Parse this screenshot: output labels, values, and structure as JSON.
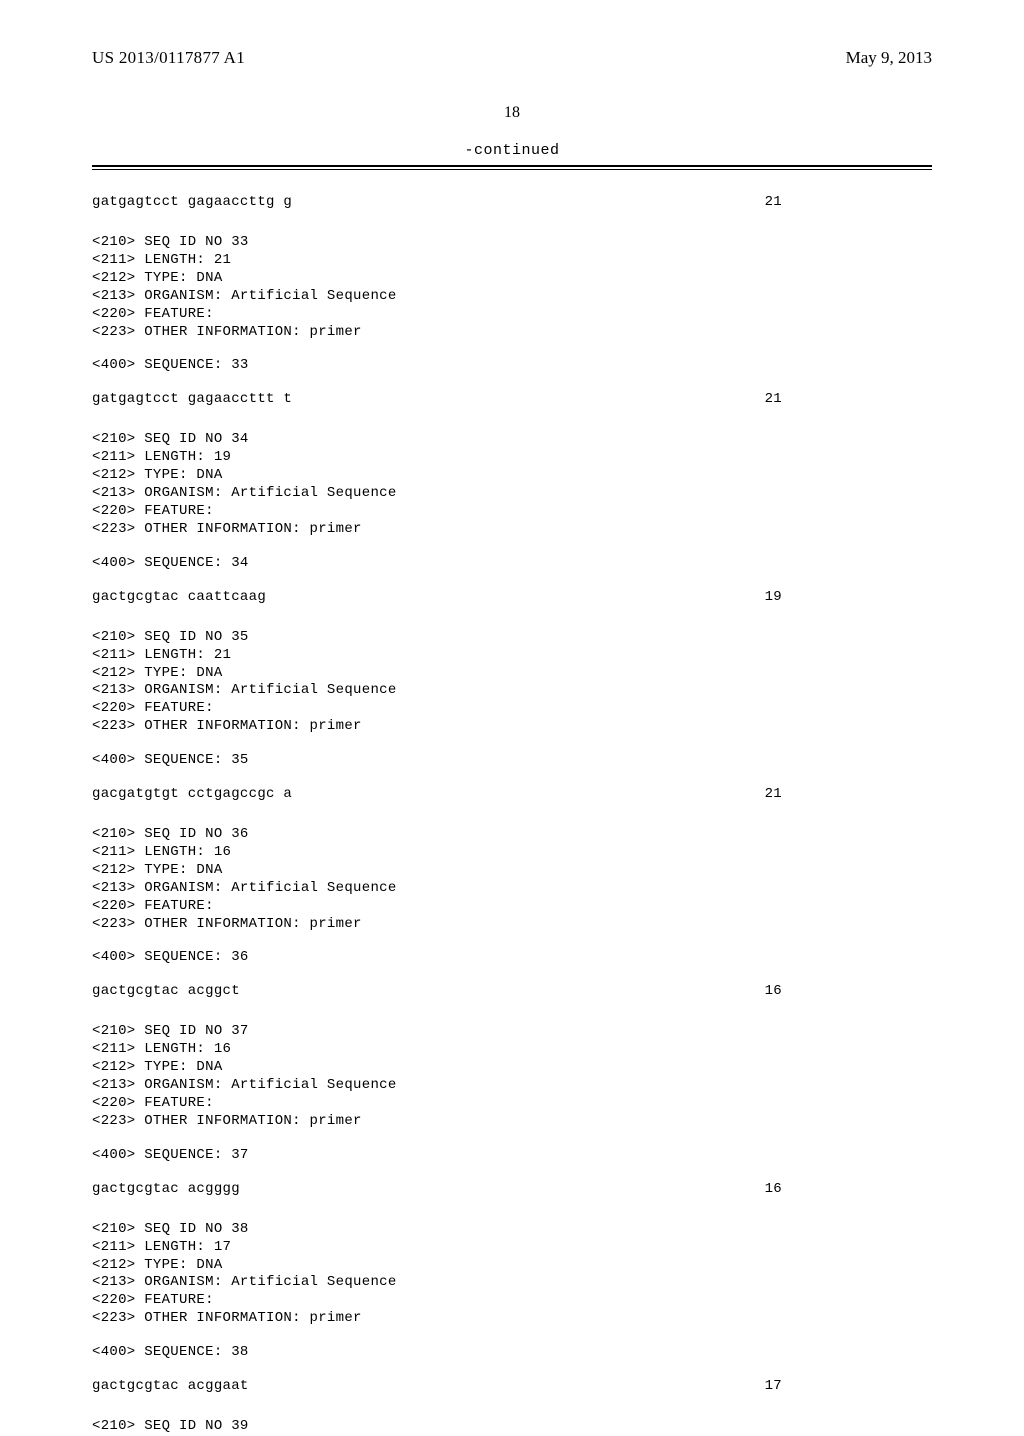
{
  "header": {
    "publication_number": "US 2013/0117877 A1",
    "publication_date": "May 9, 2013"
  },
  "page_number": "18",
  "continued_label": "-continued",
  "top_seq": {
    "sequence": "gatgagtcct gagaaccttg g",
    "length": "21"
  },
  "entries": [
    {
      "id": "33",
      "length": "21",
      "type": "DNA",
      "organism": "Artificial Sequence",
      "other_info": "primer",
      "sequence": "gatgagtcct gagaaccttt t",
      "seq_len": "21"
    },
    {
      "id": "34",
      "length": "19",
      "type": "DNA",
      "organism": "Artificial Sequence",
      "other_info": "primer",
      "sequence": "gactgcgtac caattcaag",
      "seq_len": "19"
    },
    {
      "id": "35",
      "length": "21",
      "type": "DNA",
      "organism": "Artificial Sequence",
      "other_info": "primer",
      "sequence": "gacgatgtgt cctgagccgc a",
      "seq_len": "21"
    },
    {
      "id": "36",
      "length": "16",
      "type": "DNA",
      "organism": "Artificial Sequence",
      "other_info": "primer",
      "sequence": "gactgcgtac acggct",
      "seq_len": "16"
    },
    {
      "id": "37",
      "length": "16",
      "type": "DNA",
      "organism": "Artificial Sequence",
      "other_info": "primer",
      "sequence": "gactgcgtac acgggg",
      "seq_len": "16"
    },
    {
      "id": "38",
      "length": "17",
      "type": "DNA",
      "organism": "Artificial Sequence",
      "other_info": "primer",
      "sequence": "gactgcgtac acggaat",
      "seq_len": "17"
    }
  ],
  "trailing_id": "39",
  "labels": {
    "seq_id_no": "<210> SEQ ID NO ",
    "length": "<211> LENGTH: ",
    "type": "<212> TYPE: ",
    "organism": "<213> ORGANISM: ",
    "feature": "<220> FEATURE:",
    "other_info": "<223> OTHER INFORMATION: ",
    "sequence": "<400> SEQUENCE: "
  }
}
